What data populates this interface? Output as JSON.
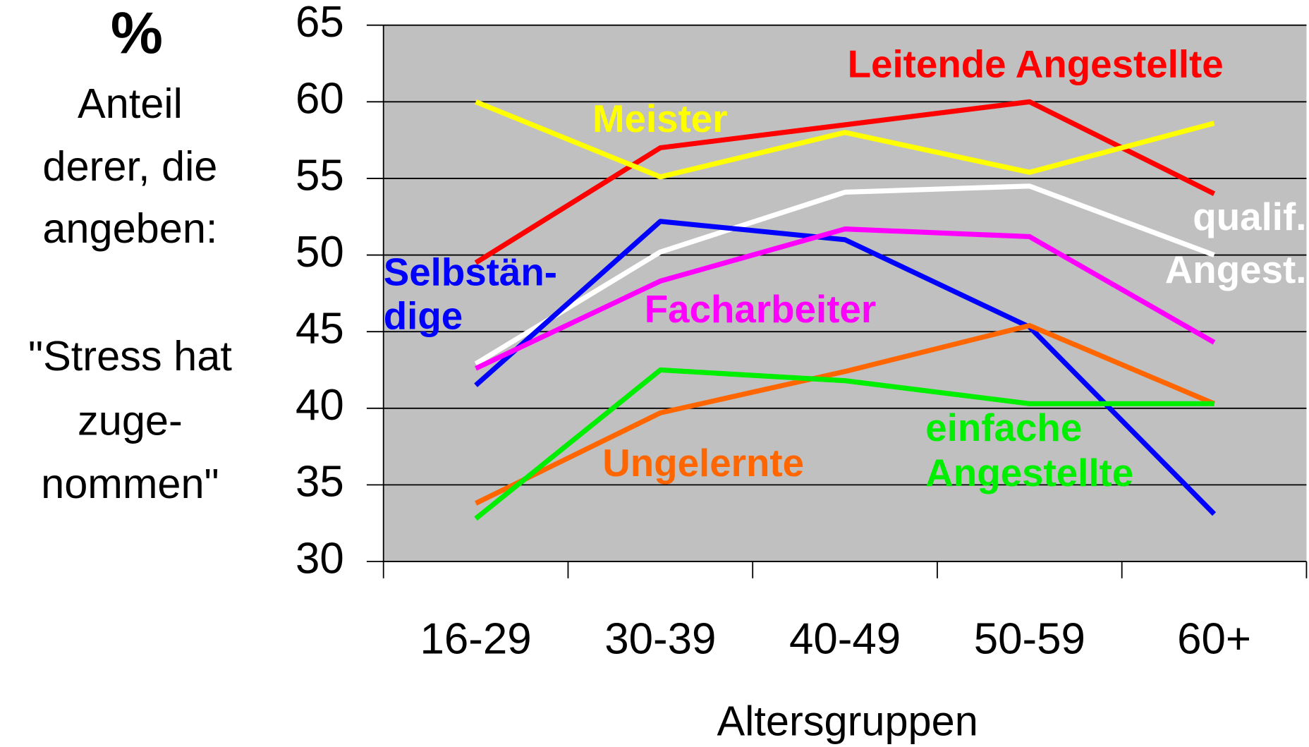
{
  "chart_data": {
    "type": "line",
    "y_unit": "%",
    "ylabel": [
      [
        "Anteil",
        "derer, die",
        "angeben:"
      ],
      [
        "\"Stress hat",
        "zuge-",
        "nommen\""
      ]
    ],
    "xlabel": "Altersgruppen",
    "categories": [
      "16-29",
      "30-39",
      "40-49",
      "50-59",
      "60+"
    ],
    "ylim": [
      30,
      65
    ],
    "yticks": [
      30,
      35,
      40,
      45,
      50,
      55,
      60,
      65
    ],
    "grid": true,
    "plot_background": "#c0c0c0",
    "series": [
      {
        "label": [
          "Leitende Angestellte"
        ],
        "color": "#ff0000",
        "values": [
          49.5,
          57,
          58.5,
          60,
          54
        ]
      },
      {
        "label": [
          "Meister"
        ],
        "color": "#ffff00",
        "values": [
          60,
          55.1,
          58,
          55.4,
          58.6
        ]
      },
      {
        "label": [
          "qualif.",
          "Angest."
        ],
        "color": "#ffffff",
        "values": [
          42.9,
          50.2,
          54.1,
          54.5,
          50
        ]
      },
      {
        "label": [
          "Selbstän-",
          "dige"
        ],
        "color": "#0000ff",
        "values": [
          41.5,
          52.2,
          51,
          45.3,
          33.1
        ]
      },
      {
        "label": [
          "Facharbeiter"
        ],
        "color": "#ff00ff",
        "values": [
          42.6,
          48.3,
          51.7,
          51.2,
          44.3
        ]
      },
      {
        "label": [
          "Ungelernte"
        ],
        "color": "#ff6600",
        "values": [
          33.8,
          39.7,
          42.4,
          45.4,
          40.3
        ]
      },
      {
        "label": [
          "einfache",
          "Angestellte"
        ],
        "color": "#00ee00",
        "values": [
          32.8,
          42.5,
          41.8,
          40.3,
          40.3
        ]
      }
    ]
  }
}
